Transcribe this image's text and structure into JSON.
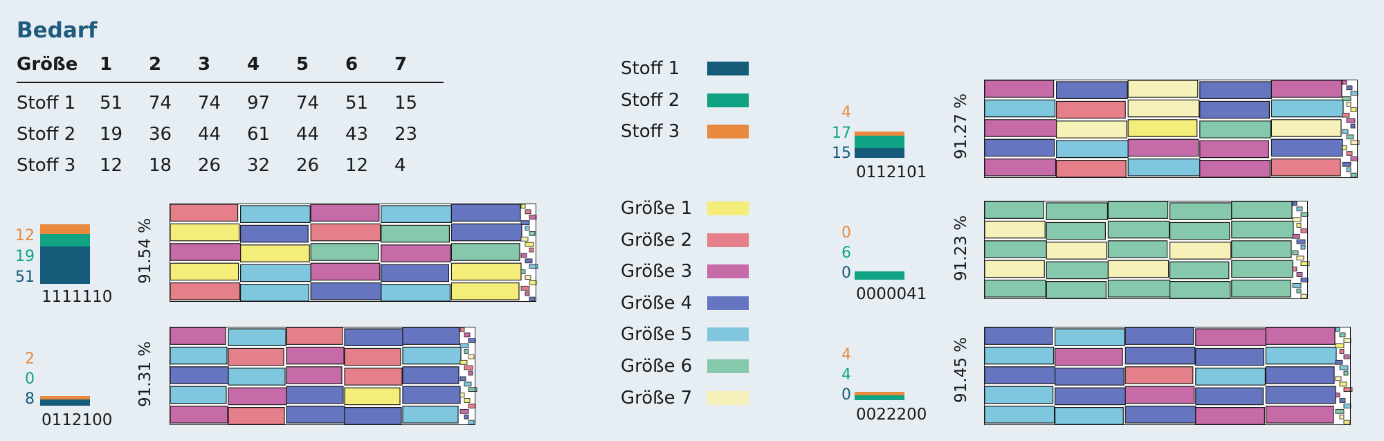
{
  "title": "Bedarf",
  "table": {
    "header": [
      "Größe",
      "1",
      "2",
      "3",
      "4",
      "5",
      "6",
      "7"
    ],
    "rows": [
      {
        "label": "Stoff 1",
        "values": [
          "51",
          "74",
          "74",
          "97",
          "74",
          "51",
          "15"
        ]
      },
      {
        "label": "Stoff 2",
        "values": [
          "19",
          "36",
          "44",
          "61",
          "44",
          "43",
          "23"
        ]
      },
      {
        "label": "Stoff 3",
        "values": [
          "12",
          "18",
          "26",
          "32",
          "26",
          "12",
          "4"
        ]
      }
    ]
  },
  "legend_fabric": [
    {
      "label": "Stoff 1",
      "color": "#155a78"
    },
    {
      "label": "Stoff 2",
      "color": "#0fa383"
    },
    {
      "label": "Stoff 3",
      "color": "#e8893e"
    }
  ],
  "legend_size": [
    {
      "label": "Größe 1",
      "color": "#f4ed7a"
    },
    {
      "label": "Größe 2",
      "color": "#e5808a"
    },
    {
      "label": "Größe 3",
      "color": "#c66aa8"
    },
    {
      "label": "Größe 4",
      "color": "#6675c0"
    },
    {
      "label": "Größe 5",
      "color": "#7ec7de"
    },
    {
      "label": "Größe 6",
      "color": "#86c8ac"
    },
    {
      "label": "Größe 7",
      "color": "#f5f1b8"
    }
  ],
  "layouts": [
    {
      "s3": "12",
      "s2": "19",
      "s1": "51",
      "code": "1111110",
      "percent": "91.54 %"
    },
    {
      "s3": "2",
      "s2": "0",
      "s1": "8",
      "code": "0112100",
      "percent": "91.31 %"
    },
    {
      "s3": "4",
      "s2": "17",
      "s1": "15",
      "code": "0112101",
      "percent": "91.27 %"
    },
    {
      "s3": "0",
      "s2": "6",
      "s1": "0",
      "code": "0000041",
      "percent": "91.23 %"
    },
    {
      "s3": "4",
      "s2": "4",
      "s1": "0",
      "code": "0022200",
      "percent": "91.45 %"
    }
  ]
}
